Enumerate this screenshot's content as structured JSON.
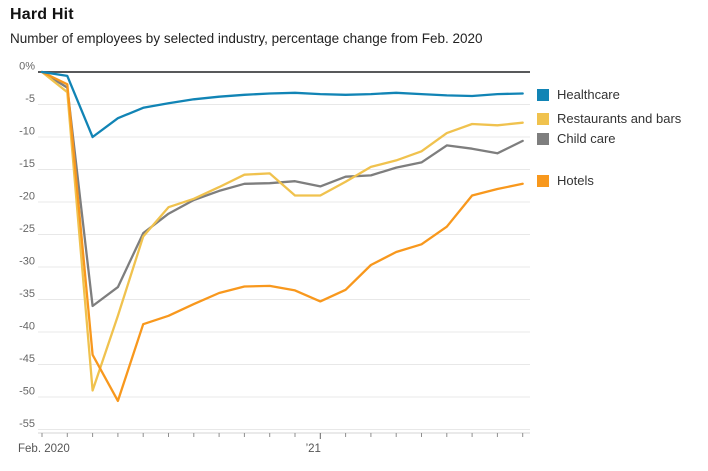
{
  "header": {
    "title": "Hard Hit",
    "subtitle": "Number of employees by selected industry, percentage change from Feb. 2020"
  },
  "chart_data": {
    "type": "line",
    "title": "Hard Hit",
    "subtitle": "Number of employees by selected industry, percentage change from Feb. 2020",
    "x": [
      "2020-02",
      "2020-03",
      "2020-04",
      "2020-05",
      "2020-06",
      "2020-07",
      "2020-08",
      "2020-09",
      "2020-10",
      "2020-11",
      "2020-12",
      "2021-01",
      "2021-02",
      "2021-03",
      "2021-04",
      "2021-05",
      "2021-06",
      "2021-07",
      "2021-08",
      "2021-09"
    ],
    "series": [
      {
        "name": "Healthcare",
        "color": "#1184b5",
        "values": [
          0,
          -0.6,
          -10.0,
          -7.1,
          -5.5,
          -4.8,
          -4.2,
          -3.8,
          -3.5,
          -3.3,
          -3.2,
          -3.4,
          -3.5,
          -3.4,
          -3.2,
          -3.4,
          -3.6,
          -3.7,
          -3.4,
          -3.3
        ]
      },
      {
        "name": "Restaurants and bars",
        "color": "#f0c24e",
        "values": [
          0,
          -3.1,
          -49.0,
          -37.5,
          -25.3,
          -20.8,
          -19.5,
          -17.7,
          -15.8,
          -15.6,
          -19.0,
          -19.0,
          -16.9,
          -14.6,
          -13.6,
          -12.2,
          -9.4,
          -8.0,
          -8.2,
          -7.8
        ]
      },
      {
        "name": "Child care",
        "color": "#7e7e7e",
        "values": [
          0,
          -2.4,
          -36.0,
          -33.1,
          -24.8,
          -21.8,
          -19.7,
          -18.3,
          -17.2,
          -17.1,
          -16.8,
          -17.6,
          -16.1,
          -15.9,
          -14.7,
          -13.9,
          -11.3,
          -11.8,
          -12.5,
          -10.6
        ]
      },
      {
        "name": "Hotels",
        "color": "#f8981d",
        "values": [
          0,
          -1.9,
          -43.5,
          -50.6,
          -38.8,
          -37.5,
          -35.7,
          -34.0,
          -33.0,
          -32.9,
          -33.6,
          -35.3,
          -33.5,
          -29.7,
          -27.7,
          -26.5,
          -23.8,
          -19.0,
          -18.0,
          -17.2
        ]
      }
    ],
    "ylim": [
      -55,
      0
    ],
    "ytick_labels": [
      "0%",
      "-5",
      "-10",
      "-15",
      "-20",
      "-25",
      "-30",
      "-35",
      "-40",
      "-45",
      "-50",
      "-55"
    ],
    "xtick_labels": [
      {
        "index": 0,
        "label": "Feb. 2020",
        "align": "start"
      },
      {
        "index": 11,
        "label": "’21",
        "align": "middle"
      }
    ],
    "grid": "horizontal",
    "legend_position": "right",
    "colors": {
      "zero_line": "#58595b",
      "gridline": "#e8e8e8",
      "axis_line": "#d4d4d4",
      "tick": "#8f8f8f"
    }
  }
}
